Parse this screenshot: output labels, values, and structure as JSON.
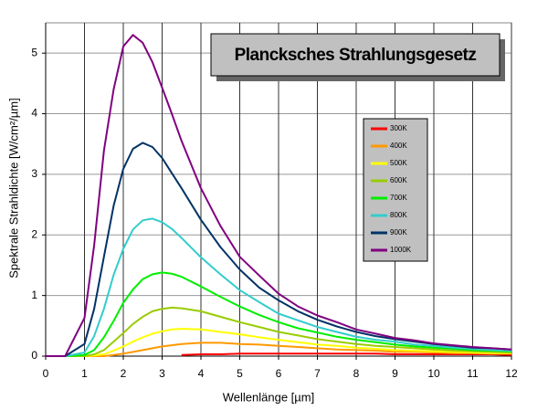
{
  "chart_data": {
    "type": "line",
    "title": "Plancksches Strahlungsgesetz",
    "x_label": "Wellenlänge [µm]",
    "y_label": "Spektrale Strahldichte [W/cm²/µm]",
    "x": [
      0,
      0.5,
      1,
      1.25,
      1.5,
      1.75,
      2,
      2.25,
      2.5,
      2.75,
      3,
      3.25,
      3.5,
      4,
      4.5,
      5,
      5.5,
      6,
      6.5,
      7,
      7.5,
      8,
      8.5,
      9,
      9.5,
      10,
      10.5,
      11,
      11.5,
      12
    ],
    "series": [
      {
        "name": "300K",
        "color": "#ff0000",
        "values": [
          null,
          null,
          null,
          null,
          null,
          null,
          null,
          null,
          null,
          null,
          null,
          null,
          0.02,
          0.03,
          0.03,
          0.04,
          0.04,
          0.04,
          0.04,
          0.04,
          0.04,
          0.04,
          0.04,
          0.03,
          0.03,
          0.03,
          0.03,
          0.03,
          0.03,
          0.02
        ]
      },
      {
        "name": "400K",
        "color": "#ff9900",
        "values": [
          0,
          0,
          0,
          0,
          0,
          0.02,
          0.04,
          0.07,
          0.1,
          0.13,
          0.16,
          0.18,
          0.2,
          0.22,
          0.22,
          0.2,
          0.19,
          0.17,
          0.15,
          0.13,
          0.11,
          0.1,
          0.09,
          0.07,
          0.07,
          0.06,
          0.05,
          0.05,
          0.04,
          0.04
        ]
      },
      {
        "name": "500K",
        "color": "#ffff00",
        "values": [
          0,
          0,
          0,
          0.01,
          0.03,
          0.09,
          0.16,
          0.24,
          0.31,
          0.37,
          0.41,
          0.44,
          0.45,
          0.44,
          0.4,
          0.36,
          0.31,
          0.27,
          0.23,
          0.19,
          0.17,
          0.14,
          0.12,
          0.1,
          0.09,
          0.08,
          0.07,
          0.06,
          0.05,
          0.05
        ]
      },
      {
        "name": "600K",
        "color": "#99cc00",
        "values": [
          0,
          0,
          0,
          0.03,
          0.1,
          0.24,
          0.38,
          0.53,
          0.65,
          0.74,
          0.78,
          0.8,
          0.79,
          0.74,
          0.65,
          0.56,
          0.48,
          0.4,
          0.34,
          0.28,
          0.24,
          0.2,
          0.17,
          0.15,
          0.13,
          0.11,
          0.09,
          0.08,
          0.07,
          0.06
        ]
      },
      {
        "name": "700K",
        "color": "#00ee00",
        "values": [
          0,
          0,
          0.02,
          0.1,
          0.31,
          0.58,
          0.88,
          1.1,
          1.27,
          1.35,
          1.38,
          1.36,
          1.31,
          1.15,
          0.98,
          0.82,
          0.68,
          0.56,
          0.46,
          0.39,
          0.32,
          0.27,
          0.23,
          0.19,
          0.16,
          0.14,
          0.12,
          0.1,
          0.09,
          0.08
        ]
      },
      {
        "name": "800K",
        "color": "#33cccc",
        "values": [
          0,
          0,
          0.06,
          0.33,
          0.78,
          1.34,
          1.77,
          2.09,
          2.24,
          2.27,
          2.21,
          2.1,
          1.95,
          1.63,
          1.35,
          1.09,
          0.89,
          0.7,
          0.59,
          0.48,
          0.4,
          0.32,
          0.27,
          0.24,
          0.19,
          0.17,
          0.14,
          0.12,
          0.1,
          0.09
        ]
      },
      {
        "name": "900K",
        "color": "#003366",
        "values": [
          0,
          0,
          0.2,
          0.78,
          1.64,
          2.48,
          3.09,
          3.42,
          3.52,
          3.45,
          3.27,
          3.02,
          2.77,
          2.25,
          1.8,
          1.43,
          1.13,
          0.92,
          0.74,
          0.6,
          0.49,
          0.4,
          0.33,
          0.28,
          0.24,
          0.2,
          0.17,
          0.14,
          0.13,
          0.11
        ]
      },
      {
        "name": "1000K",
        "color": "#800080",
        "values": [
          0,
          0,
          0.63,
          1.83,
          3.39,
          4.4,
          5.11,
          5.3,
          5.17,
          4.85,
          4.43,
          4.0,
          3.55,
          2.77,
          2.15,
          1.64,
          1.33,
          1.03,
          0.82,
          0.67,
          0.56,
          0.44,
          0.37,
          0.3,
          0.26,
          0.21,
          0.18,
          0.15,
          0.13,
          0.11
        ]
      }
    ],
    "xlim": [
      0,
      12
    ],
    "xticks": [
      0,
      1,
      2,
      3,
      4,
      5,
      6,
      7,
      8,
      9,
      10,
      11,
      12
    ],
    "ylim": [
      0,
      5.5
    ],
    "yticks": [
      0,
      1,
      2,
      3,
      4,
      5
    ],
    "grid": true
  }
}
